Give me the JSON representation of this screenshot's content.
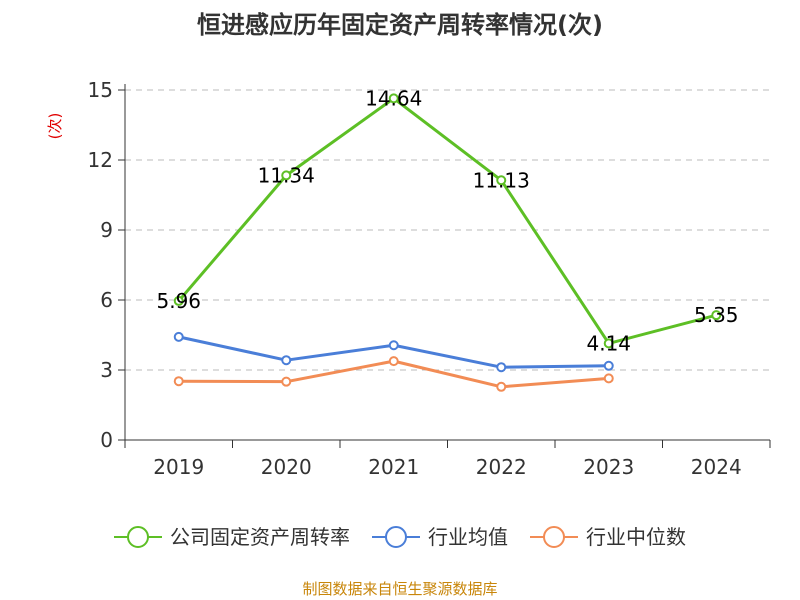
{
  "chart_data": {
    "type": "line",
    "title": "恒进感应历年固定资产周转率情况(次)",
    "ylabel": "(次)",
    "xlabel": "",
    "categories": [
      "2019",
      "2020",
      "2021",
      "2022",
      "2023",
      "2024"
    ],
    "ylim": [
      0,
      15
    ],
    "yticks": [
      0,
      3,
      6,
      9,
      12,
      15
    ],
    "grid": true,
    "legend_position": "bottom",
    "series": [
      {
        "name": "公司固定资产周转率",
        "color": "#5dbf25",
        "values": [
          5.96,
          11.34,
          14.64,
          11.13,
          4.14,
          5.35
        ],
        "labels": [
          "5.96",
          "11.34",
          "14.64",
          "11.13",
          "4.14",
          "5.35"
        ]
      },
      {
        "name": "行业均值",
        "color": "#4a7ed8",
        "values": [
          4.42,
          3.42,
          4.06,
          3.12,
          3.18,
          null
        ]
      },
      {
        "name": "行业中位数",
        "color": "#f28c55",
        "values": [
          2.52,
          2.5,
          3.38,
          2.28,
          2.64,
          null
        ]
      }
    ]
  },
  "source": "制图数据来自恒生聚源数据库"
}
